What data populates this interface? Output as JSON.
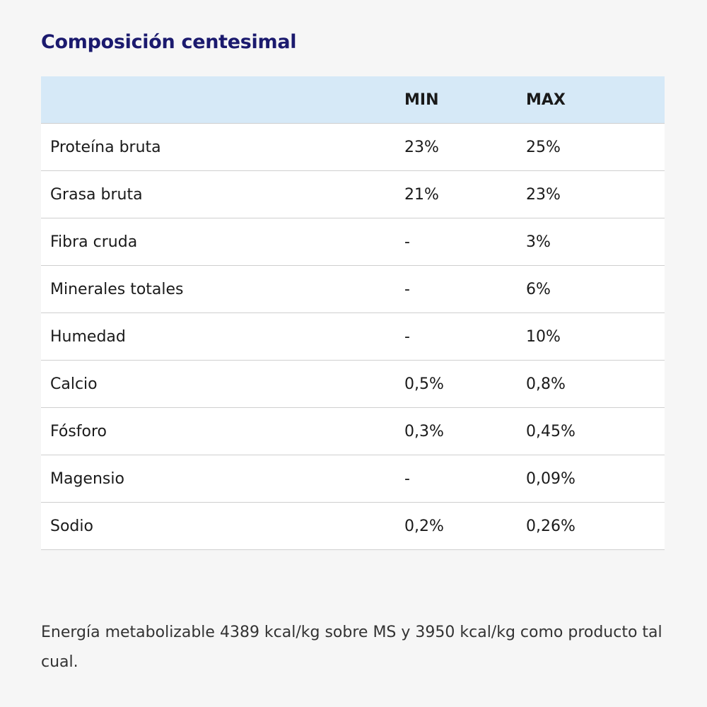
{
  "title": "Composición centesimal",
  "table": {
    "headers": [
      "",
      "MIN",
      "MAX"
    ],
    "rows": [
      {
        "name": "Proteína bruta",
        "min": "23%",
        "max": "25%"
      },
      {
        "name": "Grasa bruta",
        "min": "21%",
        "max": "23%"
      },
      {
        "name": "Fibra cruda",
        "min": "-",
        "max": "3%"
      },
      {
        "name": "Minerales totales",
        "min": "-",
        "max": "6%"
      },
      {
        "name": "Humedad",
        "min": "-",
        "max": "10%"
      },
      {
        "name": "Calcio",
        "min": "0,5%",
        "max": "0,8%"
      },
      {
        "name": "Fósforo",
        "min": "0,3%",
        "max": "0,45%"
      },
      {
        "name": "Magensio",
        "min": "-",
        "max": "0,09%"
      },
      {
        "name": "Sodio",
        "min": "0,2%",
        "max": "0,26%"
      }
    ]
  },
  "footnote": "Energía metabolizable 4389 kcal/kg sobre MS y 3950 kcal/kg como producto tal cual.",
  "colors": {
    "title": "#1b1a6e",
    "header_bg": "#d6e9f7",
    "page_bg": "#f6f6f6"
  }
}
